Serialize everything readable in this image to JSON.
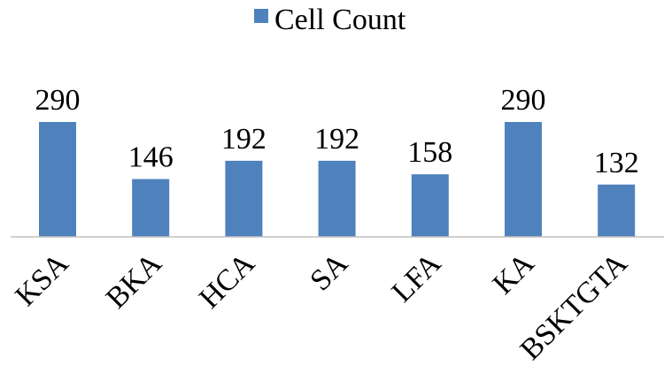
{
  "chart_data": {
    "type": "bar",
    "title": "",
    "xlabel": "",
    "ylabel": "",
    "legend": {
      "position": "top-center",
      "entries": [
        "Cell Count"
      ]
    },
    "categories": [
      "KSA",
      "BKA",
      "HCA",
      "SA",
      "LFA",
      "KA",
      "BSKTGTA"
    ],
    "series": [
      {
        "name": "Cell Count",
        "values": [
          290,
          146,
          192,
          192,
          158,
          290,
          132
        ],
        "color": "#4f81bd"
      }
    ],
    "ylim": [
      0,
      290
    ],
    "grid": false,
    "axis_color": "#bfbfbf"
  }
}
